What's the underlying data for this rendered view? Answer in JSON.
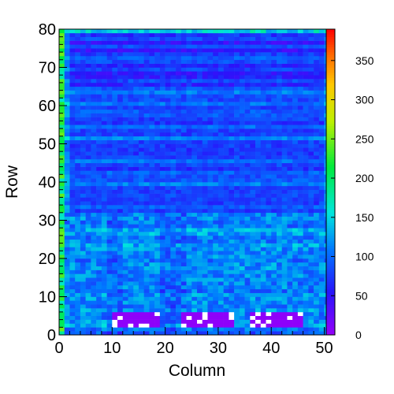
{
  "chart_data": {
    "type": "heatmap",
    "title": "",
    "xlabel": "Column",
    "ylabel": "Row",
    "x_range": [
      0,
      52
    ],
    "y_range": [
      0,
      80
    ],
    "x_ticks": [
      "0",
      "10",
      "20",
      "30",
      "40",
      "50"
    ],
    "y_ticks": [
      "0",
      "10",
      "20",
      "30",
      "40",
      "50",
      "60",
      "70",
      "80"
    ],
    "z_range": [
      0,
      390
    ],
    "z_ticks": [
      "0",
      "50",
      "100",
      "150",
      "200",
      "250",
      "300",
      "350"
    ],
    "colormap": "ROOT kBird/rainbow: violet-blue-cyan-green-yellow-orange-red",
    "grid": false,
    "values_description": "rows 0-31 mostly 90-160 (cyan/teal), rows 32-78 mostly 50-110 (blue), three near-empty rectangles at rows 2-5 columns 10-18, 23-32, 36-45",
    "low_regions": [
      {
        "rows": [
          2,
          5
        ],
        "cols": [
          10,
          18
        ]
      },
      {
        "rows": [
          2,
          5
        ],
        "cols": [
          23,
          32
        ]
      },
      {
        "rows": [
          2,
          5
        ],
        "cols": [
          36,
          45
        ]
      }
    ]
  }
}
